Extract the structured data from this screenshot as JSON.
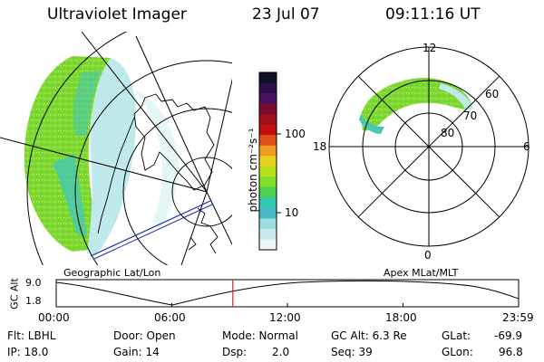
{
  "header": {
    "title": "Ultraviolet Imager",
    "date": "23 Jul 07",
    "time": "09:11:16 UT"
  },
  "colorbar": {
    "unit_label": "photon cm⁻²s⁻¹",
    "tick_labels": [
      "100",
      "10"
    ],
    "colors": [
      "#101028",
      "#2a1048",
      "#4a1060",
      "#7a0a30",
      "#a01018",
      "#c01010",
      "#e0501a",
      "#f09a20",
      "#e6d020",
      "#b8e018",
      "#7ee02a",
      "#4cd050",
      "#30c8b0",
      "#48b8c8",
      "#9adce0",
      "#c8ecec",
      "#eef6f6"
    ]
  },
  "geo_map": {
    "caption": "Geographic Lat/Lon"
  },
  "polar_map": {
    "caption": "Apex MLat/MLT",
    "hour_labels": {
      "top": "12",
      "left": "18",
      "right": "6",
      "bottom": "0"
    },
    "lat_labels": [
      "60",
      "70",
      "80"
    ]
  },
  "timeline": {
    "ylabel": "GC Alt",
    "y_ticks": [
      "9.0",
      "1.8"
    ],
    "x_ticks": [
      "00:00",
      "06:00",
      "12:00",
      "18:00",
      "23:59"
    ],
    "current_fraction": 0.382,
    "marker_color": "#d02020"
  },
  "info": {
    "filter": "Flt: LBHL",
    "ip": "IP: 18.0",
    "door": "Door: Open",
    "gain": "Gain: 14",
    "mode": "Mode: Normal",
    "dsp_label": "Dsp:",
    "dsp_value": "2.0",
    "gc_alt": "GC Alt: 6.3 Re",
    "seq": "Seq: 39",
    "glat_label": "GLat:",
    "glat_value": "-69.9",
    "glon_label": "GLon:",
    "glon_value": "96.8"
  }
}
